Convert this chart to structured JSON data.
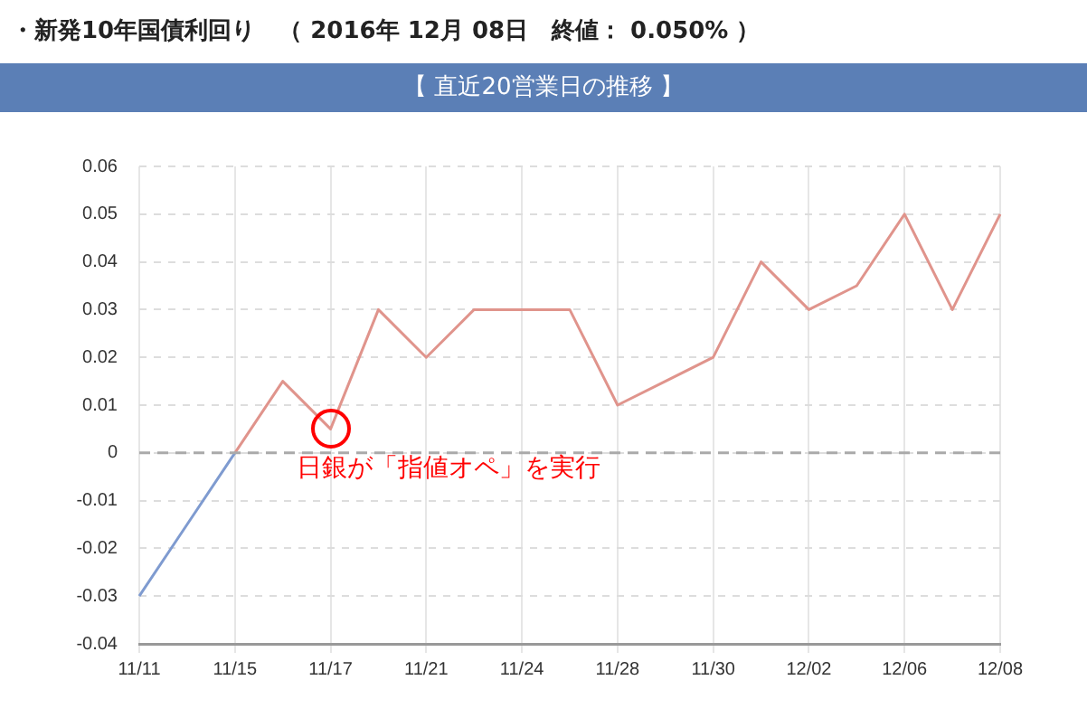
{
  "chart_data": {
    "type": "line",
    "title": "・新発10年国債利回り　（ 2016年 12月 08日　終値： 0.050% ）",
    "subtitle": "【 直近20営業日の推移 】",
    "categories": [
      "11/11",
      null,
      "11/15",
      null,
      "11/17",
      null,
      "11/21",
      null,
      "11/24",
      null,
      "11/28",
      null,
      "11/30",
      null,
      "12/02",
      null,
      "12/06",
      null,
      "12/08"
    ],
    "series": [
      {
        "color": "#7f9bd0",
        "values": [
          -0.03,
          -0.015,
          0,
          null,
          null,
          null,
          null,
          null,
          null,
          null,
          null,
          null,
          null,
          null,
          null,
          null,
          null,
          null,
          null
        ]
      },
      {
        "color": "#e0948c",
        "values": [
          null,
          null,
          0,
          0.015,
          0.005,
          0.03,
          0.02,
          0.03,
          0.03,
          0.03,
          0.01,
          0.015,
          0.02,
          0.04,
          0.03,
          0.035,
          0.05,
          0.03,
          0.05
        ]
      }
    ],
    "ylim": [
      -0.04,
      0.06
    ],
    "yticks": [
      -0.04,
      -0.03,
      -0.02,
      -0.01,
      0,
      0.01,
      0.02,
      0.03,
      0.04,
      0.05,
      0.06
    ],
    "grid": true,
    "legend": false,
    "ref_lines": [
      {
        "axis": "y",
        "value": 0,
        "color": "#aaaaaa",
        "line_style": "dashed"
      }
    ],
    "marker": "none",
    "line_style": "solid",
    "annotations": [
      {
        "text": "日銀が「指値オペ」を実行",
        "x": "11/17",
        "y": 0.005
      }
    ]
  }
}
